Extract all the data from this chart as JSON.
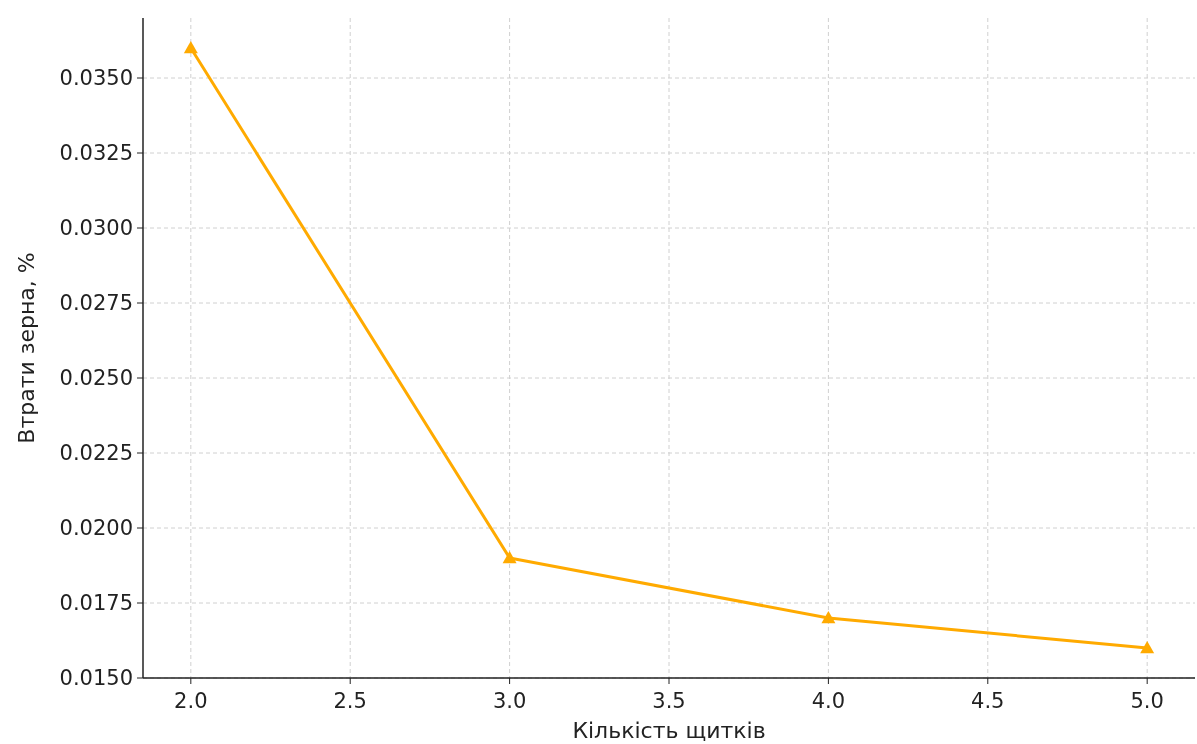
{
  "chart_data": {
    "type": "line",
    "xlabel": "Кількість щитків",
    "ylabel": "Втрати зерна, %",
    "x": [
      2,
      3,
      4,
      5
    ],
    "series": [
      {
        "color": "#ffaa00",
        "values": [
          0.036,
          0.019,
          0.017,
          0.016
        ]
      }
    ],
    "xlim": [
      1.85,
      5.15
    ],
    "xticks": [
      {
        "value": 2,
        "label": "2.0"
      },
      {
        "value": 2.5,
        "label": "2.5"
      },
      {
        "value": 3,
        "label": "3.0"
      },
      {
        "value": 3.5,
        "label": "3.5"
      },
      {
        "value": 4,
        "label": "4.0"
      },
      {
        "value": 4.5,
        "label": "4.5"
      },
      {
        "value": 5,
        "label": "5.0"
      }
    ],
    "ylim": [
      0.015,
      0.037
    ],
    "yticks": [
      {
        "value": 0.015,
        "label": "0.0150"
      },
      {
        "value": 0.0175,
        "label": "0.0175"
      },
      {
        "value": 0.02,
        "label": "0.0200"
      },
      {
        "value": 0.0225,
        "label": "0.0225"
      },
      {
        "value": 0.025,
        "label": "0.0250"
      },
      {
        "value": 0.0275,
        "label": "0.0275"
      },
      {
        "value": 0.03,
        "label": "0.0300"
      },
      {
        "value": 0.0325,
        "label": "0.0325"
      },
      {
        "value": 0.035,
        "label": "0.0350"
      }
    ],
    "grid": true,
    "marker": "triangle",
    "line_style": "solid"
  }
}
